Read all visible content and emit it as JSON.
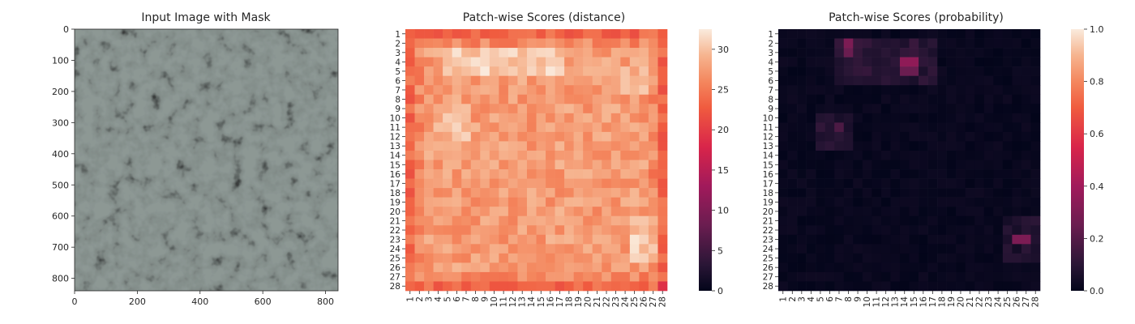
{
  "chart_data": [
    {
      "type": "image",
      "title": "Input Image with Mask",
      "x_ticks": [
        "0",
        "200",
        "400",
        "600",
        "800"
      ],
      "y_ticks": [
        "0",
        "100",
        "200",
        "300",
        "400",
        "500",
        "600",
        "700",
        "800"
      ],
      "xlim": [
        0,
        840
      ],
      "ylim": [
        840,
        0
      ],
      "x_tick_values": [
        0,
        200,
        400,
        600,
        800
      ],
      "y_tick_values": [
        0,
        100,
        200,
        300,
        400,
        500,
        600,
        700,
        800
      ]
    },
    {
      "type": "heatmap",
      "title": "Patch-wise Scores (distance)",
      "x_labels": [
        "1",
        "2",
        "3",
        "4",
        "5",
        "6",
        "7",
        "8",
        "9",
        "10",
        "11",
        "12",
        "13",
        "14",
        "15",
        "16",
        "17",
        "18",
        "19",
        "20",
        "21",
        "22",
        "23",
        "24",
        "25",
        "26",
        "27",
        "28"
      ],
      "y_labels": [
        "1",
        "2",
        "3",
        "4",
        "5",
        "6",
        "7",
        "8",
        "9",
        "10",
        "11",
        "12",
        "13",
        "14",
        "15",
        "16",
        "17",
        "18",
        "19",
        "20",
        "21",
        "22",
        "23",
        "24",
        "25",
        "26",
        "27",
        "28"
      ],
      "colorbar": {
        "min": 0,
        "max": 32.5,
        "ticks": [
          0,
          5,
          10,
          15,
          20,
          25,
          30
        ],
        "tick_labels": [
          "0",
          "5",
          "10",
          "15",
          "20",
          "25",
          "30"
        ]
      },
      "colormap": "rocket",
      "approx_value_range": [
        20,
        32.5
      ]
    },
    {
      "type": "heatmap",
      "title": "Patch-wise Scores (probability)",
      "x_labels": [
        "1",
        "2",
        "3",
        "4",
        "5",
        "6",
        "7",
        "8",
        "9",
        "10",
        "11",
        "12",
        "13",
        "14",
        "15",
        "16",
        "17",
        "18",
        "19",
        "20",
        "21",
        "22",
        "23",
        "24",
        "25",
        "26",
        "27",
        "28"
      ],
      "y_labels": [
        "1",
        "2",
        "3",
        "4",
        "5",
        "6",
        "7",
        "8",
        "9",
        "10",
        "11",
        "12",
        "13",
        "14",
        "15",
        "16",
        "17",
        "18",
        "19",
        "20",
        "21",
        "22",
        "23",
        "24",
        "25",
        "26",
        "27",
        "28"
      ],
      "colorbar": {
        "min": 0,
        "max": 1,
        "ticks": [
          0,
          0.2,
          0.4,
          0.6,
          0.8,
          1.0
        ],
        "tick_labels": [
          "0.0",
          "0.2",
          "0.4",
          "0.6",
          "0.8",
          "1.0"
        ]
      },
      "colormap": "rocket",
      "hotspots": [
        {
          "row": 2,
          "col": 8,
          "value": 0.3
        },
        {
          "row": 3,
          "col": 8,
          "value": 0.25
        },
        {
          "row": 4,
          "col": 14,
          "value": 0.35
        },
        {
          "row": 4,
          "col": 15,
          "value": 0.35
        },
        {
          "row": 5,
          "col": 14,
          "value": 0.25
        },
        {
          "row": 5,
          "col": 15,
          "value": 0.25
        },
        {
          "row": 23,
          "col": 26,
          "value": 0.3
        },
        {
          "row": 23,
          "col": 27,
          "value": 0.3
        },
        {
          "row": 11,
          "col": 7,
          "value": 0.18
        }
      ]
    }
  ]
}
